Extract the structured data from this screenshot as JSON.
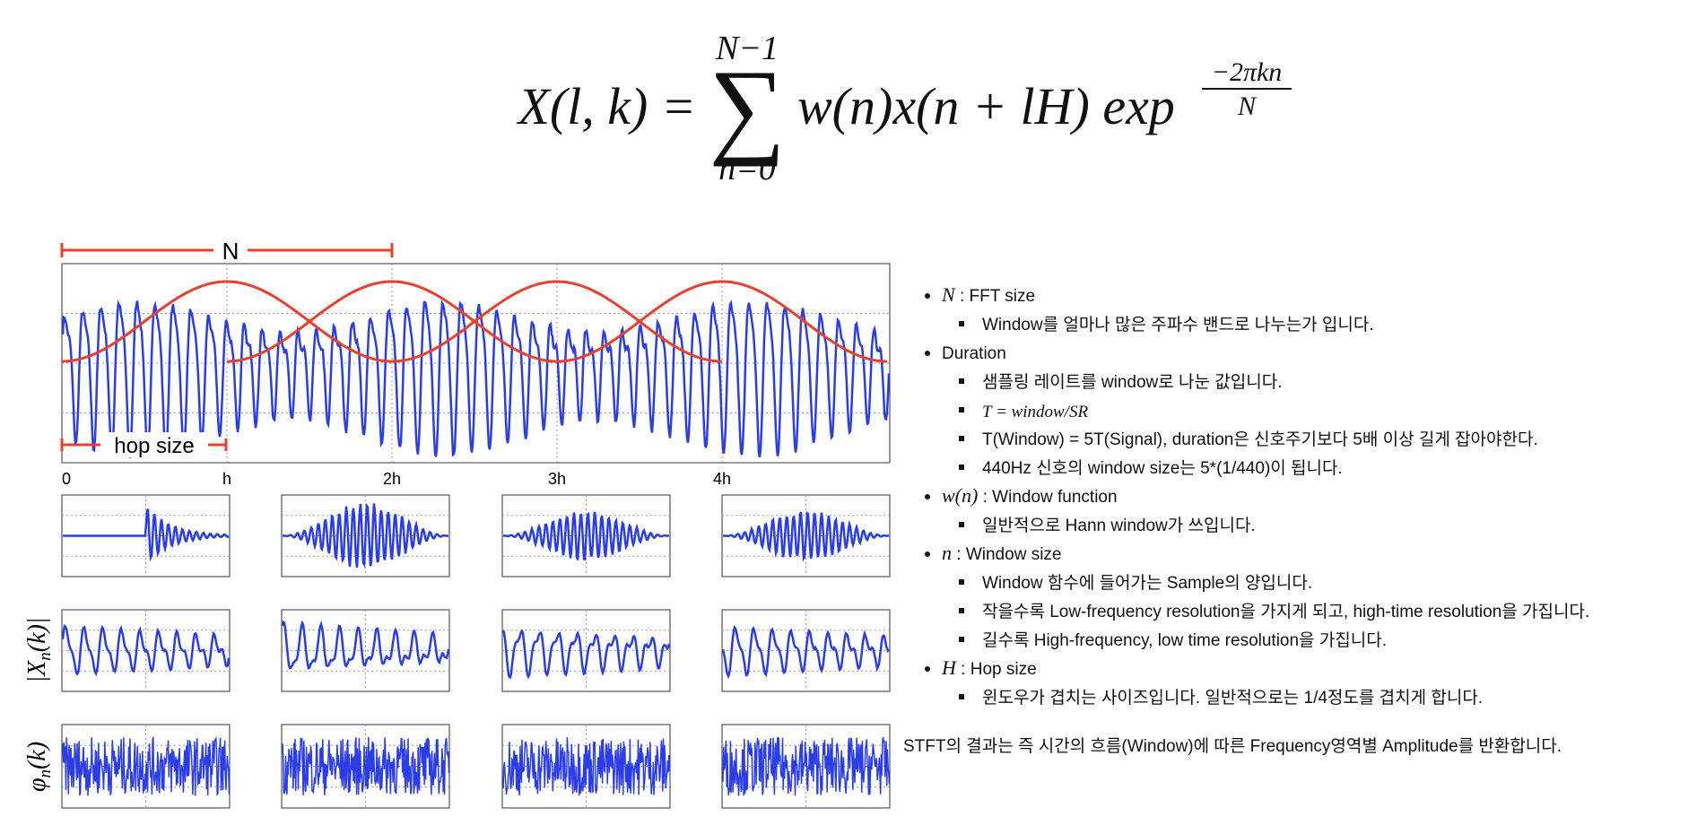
{
  "formula": {
    "lhs": "X(l, k) =",
    "sum_upper": "N−1",
    "sum_lower": "n=0",
    "sum_symbol": "∑",
    "body": "w(n)x(n + lH) exp",
    "exp_numerator": "−2πkn",
    "exp_denominator": "N"
  },
  "diagram": {
    "window_label": "N",
    "hop_label": "hop size",
    "axis_labels": [
      "0",
      "h",
      "2h",
      "3h",
      "4h"
    ],
    "magnitude_label": {
      "main": "|X",
      "sub": "n",
      "rest": "(k)|"
    },
    "phase_label": {
      "main": "φ",
      "sub": "n",
      "rest": "(k)"
    }
  },
  "notes": {
    "items": [
      {
        "symbol": "N",
        "label": " : FFT size",
        "subs": [
          {
            "text": "Window를 얼마나 많은 주파수 밴드로 나누는가 입니다."
          }
        ]
      },
      {
        "label": "Duration",
        "subs": [
          {
            "text": "샘플링 레이트를 window로 나눈 값입니다."
          },
          {
            "math": "T = window/SR"
          },
          {
            "text": "T(Window) = 5T(Signal), duration은 신호주기보다 5배 이상 길게 잡아야한다."
          },
          {
            "text": "440Hz 신호의 window size는 5*(1/440)이 됩니다."
          }
        ]
      },
      {
        "symbol": "w(n)",
        "label": " : Window function",
        "subs": [
          {
            "text": "일반적으로 Hann window가 쓰입니다."
          }
        ]
      },
      {
        "symbol": "n",
        "label": " : Window size",
        "subs": [
          {
            "text": "Window 함수에 들어가는 Sample의 양입니다."
          },
          {
            "text": "작을수록 Low-frequency resolution을 가지게 되고, high-time resolution을 가집니다."
          },
          {
            "text": "길수록 High-frequency, low time resolution을 가집니다."
          }
        ]
      },
      {
        "symbol": "H",
        "label": " : Hop size",
        "subs": [
          {
            "text": "윈도우가 겹치는 사이즈입니다. 일반적으로는 1/4정도를 겹치게 합니다."
          }
        ]
      }
    ],
    "summary": "STFT의 결과는 즉 시간의 흐름(Window)에 따른 Frequency영역별 Amplitude를 반환합니다."
  }
}
